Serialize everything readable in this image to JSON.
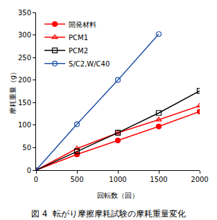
{
  "chart_data": {
    "type": "line",
    "title": "図 4  転がり摩擦摩耗試験の摩耗重量変化",
    "x_label": "回転数（回）",
    "y_label": "摩耗重量（g）",
    "x": [
      0,
      500,
      1000,
      1500,
      2000
    ],
    "series": [
      {
        "name": "開発材料",
        "color": "#ff0000",
        "marker": "circle",
        "values": [
          0,
          35,
          66,
          97,
          130
        ]
      },
      {
        "name": "PCM1",
        "color": "#ff0000",
        "marker": "triangle-up-open",
        "values": [
          0,
          48,
          83,
          112,
          143
        ]
      },
      {
        "name": "PCM2",
        "color": "#000000",
        "marker": "square-open",
        "values": [
          0,
          42,
          83,
          127,
          176
        ]
      },
      {
        "name": "S/C2,W/C40",
        "color": "#1f4fa8",
        "marker": "circle-open",
        "values": [
          0,
          102,
          200,
          302,
          null
        ]
      }
    ],
    "xlim": [
      0,
      2000
    ],
    "xticks": [
      0,
      500,
      1000,
      1500,
      2000
    ],
    "ylim": [
      0,
      350
    ],
    "yticks": [
      0,
      50,
      100,
      150,
      200,
      250,
      300,
      350
    ],
    "grid": false,
    "legend": "upper left"
  }
}
